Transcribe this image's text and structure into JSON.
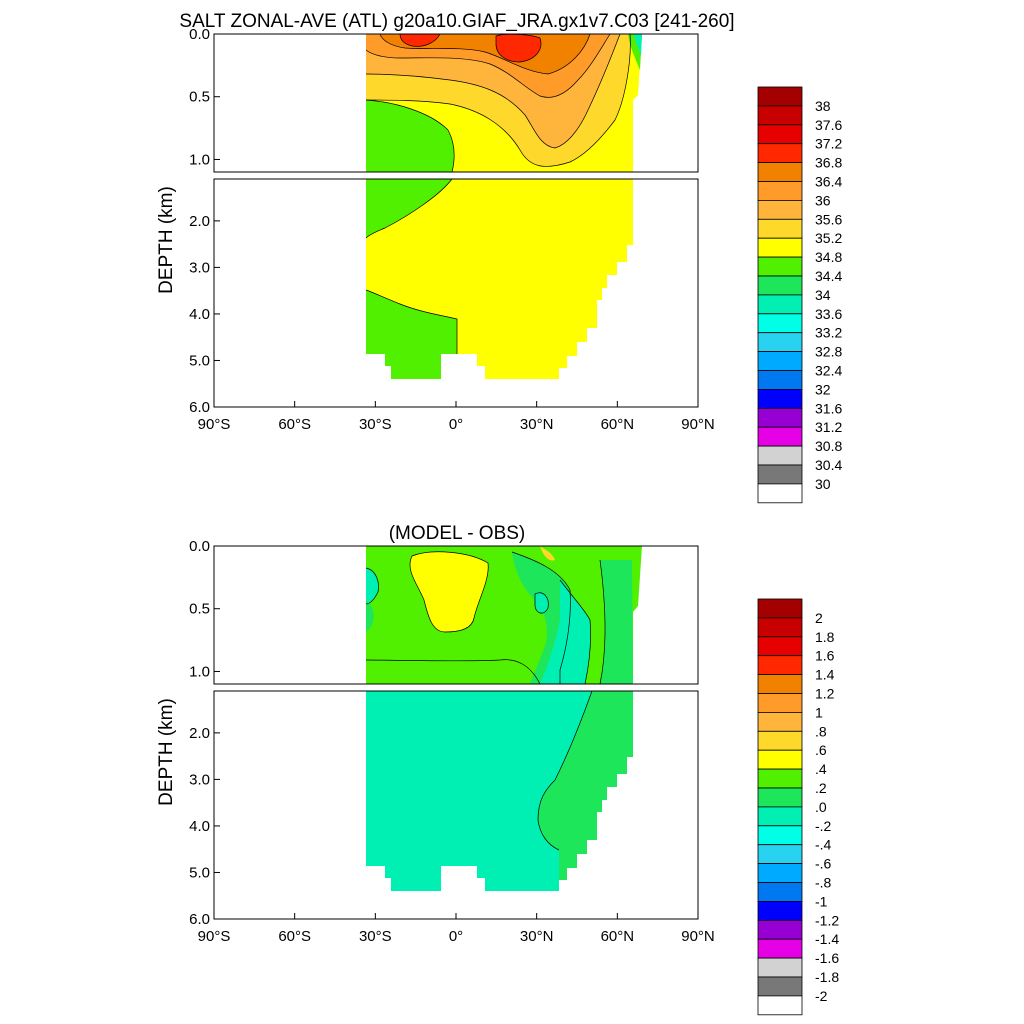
{
  "chart_data": [
    {
      "type": "heatmap",
      "title": "SALT ZONAL-AVE (ATL) g20a10.GIAF_JRA.gx1v7.C03 [241-260]",
      "ylabel": "DEPTH (km)",
      "xlim": [
        -90,
        90
      ],
      "ylim_upper_km": [
        0.0,
        1.1
      ],
      "ylim_lower_km": [
        1.1,
        6.0
      ],
      "x_ticks": [
        "90°S",
        "60°S",
        "30°S",
        "0°",
        "30°N",
        "60°N",
        "90°N"
      ],
      "y_ticks_upper": [
        "0.0",
        "0.5",
        "1.0"
      ],
      "y_ticks_lower": [
        "2.0",
        "3.0",
        "4.0",
        "5.0",
        "6.0"
      ],
      "colorbar": {
        "labels": [
          "38",
          "37.6",
          "37.2",
          "36.8",
          "36.4",
          "36",
          "35.6",
          "35.2",
          "34.8",
          "34.4",
          "34",
          "33.6",
          "33.2",
          "32.8",
          "32.4",
          "32",
          "31.6",
          "31.2",
          "30.8",
          "30.4",
          "30"
        ],
        "colors": [
          "#a50000",
          "#c80000",
          "#e60000",
          "#ff2800",
          "#f08200",
          "#ff9b28",
          "#ffb43c",
          "#ffd82c",
          "#ffff00",
          "#50f000",
          "#1ee65a",
          "#00f0b4",
          "#00ffe6",
          "#28d2f0",
          "#00aaff",
          "#0078f0",
          "#0000ff",
          "#9600d2",
          "#e600e6",
          "#d2d2d2",
          "#787878",
          "#ffffff"
        ]
      },
      "regions_approx": [
        {
          "value_range": "35.2-35.6",
          "extent": "35S-65N, 0-1 km and most of the deep Atlantic north of ~0"
        },
        {
          "value_range": "36.8-37.2",
          "extent": "surface maxima near 15S and 22N"
        },
        {
          "value_range": "34.4-34.8",
          "extent": "south of ~0 at mid-depth (AAIW) and bottom waters south of ~0"
        }
      ]
    },
    {
      "type": "heatmap",
      "title": "(MODEL - OBS)",
      "ylabel": "DEPTH (km)",
      "xlim": [
        -90,
        90
      ],
      "ylim_upper_km": [
        0.0,
        1.1
      ],
      "ylim_lower_km": [
        1.1,
        6.0
      ],
      "x_ticks": [
        "90°S",
        "60°S",
        "30°S",
        "0°",
        "30°N",
        "60°N",
        "90°N"
      ],
      "y_ticks_upper": [
        "0.0",
        "0.5",
        "1.0"
      ],
      "y_ticks_lower": [
        "2.0",
        "3.0",
        "4.0",
        "5.0",
        "6.0"
      ],
      "colorbar": {
        "labels": [
          "2",
          "1.8",
          "1.6",
          "1.4",
          "1.2",
          "1",
          ".8",
          ".6",
          ".4",
          ".2",
          ".0",
          "-.2",
          "-.4",
          "-.6",
          "-.8",
          "-1",
          "-1.2",
          "-1.4",
          "-1.6",
          "-1.8",
          "-2"
        ],
        "colors": [
          "#a50000",
          "#c80000",
          "#e60000",
          "#ff2800",
          "#f08200",
          "#ff9b28",
          "#ffb43c",
          "#ffd82c",
          "#ffff00",
          "#50f000",
          "#1ee65a",
          "#00f0b4",
          "#00ffe6",
          "#28d2f0",
          "#00aaff",
          "#0078f0",
          "#0000ff",
          "#9600d2",
          "#e600e6",
          "#d2d2d2",
          "#787878",
          "#ffffff"
        ]
      },
      "regions_approx": [
        {
          "value_range": "0.4-0.6",
          "extent": "upper 0.8 km near 5S-10N"
        },
        {
          "value_range": "0.2-0.4",
          "extent": "upper 1 km elsewhere 35S-65N"
        },
        {
          "value_range": "-0.2-0.0",
          "extent": "deep ocean below ~1.1 km south of ~45N"
        },
        {
          "value_range": "0.0-0.2",
          "extent": "deep ocean north of ~45N"
        }
      ]
    }
  ]
}
